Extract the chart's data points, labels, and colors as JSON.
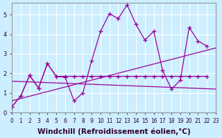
{
  "background_color": "#cceeff",
  "grid_color": "#ffffff",
  "line_color": "#990099",
  "xlabel": "Windchill (Refroidissement éolien,°C)",
  "xlabel_fontsize": 7.5,
  "ylabel_values": [
    0,
    1,
    2,
    3,
    4,
    5
  ],
  "xlim": [
    0,
    23
  ],
  "ylim": [
    0,
    5.6
  ],
  "xtick_labels": [
    "0",
    "1",
    "2",
    "3",
    "4",
    "5",
    "6",
    "7",
    "8",
    "9",
    "10",
    "11",
    "12",
    "13",
    "14",
    "15",
    "16",
    "17",
    "18",
    "19",
    "20",
    "21",
    "22",
    "23"
  ],
  "series1_x": [
    0,
    1,
    2,
    3,
    4,
    5,
    6,
    7,
    8,
    9,
    10,
    11,
    12,
    13,
    14,
    15,
    16,
    17,
    18,
    19,
    20,
    21,
    22,
    23
  ],
  "series1_y": [
    0.3,
    0.85,
    1.9,
    1.25,
    2.5,
    1.85,
    1.8,
    0.6,
    1.0,
    2.65,
    4.15,
    5.05,
    4.8,
    5.5,
    4.5,
    3.7,
    4.15,
    2.15,
    1.2,
    1.65,
    4.35,
    3.65,
    3.4,
    null
  ],
  "series2_x": [
    0,
    1,
    2,
    3,
    4,
    5,
    6,
    7,
    8,
    9,
    10,
    11,
    12,
    13,
    14,
    15,
    16,
    17,
    18,
    19,
    20,
    21,
    22,
    23
  ],
  "series2_y": [
    0.3,
    0.85,
    1.9,
    1.25,
    2.5,
    1.85,
    1.85,
    1.85,
    1.85,
    1.85,
    1.85,
    1.85,
    1.85,
    1.85,
    1.85,
    1.85,
    1.85,
    1.85,
    1.85,
    1.85,
    1.85,
    1.85,
    1.85,
    null
  ],
  "trend1_x": [
    0,
    23
  ],
  "trend1_y": [
    0.6,
    3.3
  ],
  "trend2_x": [
    0,
    23
  ],
  "trend2_y": [
    1.6,
    1.2
  ]
}
